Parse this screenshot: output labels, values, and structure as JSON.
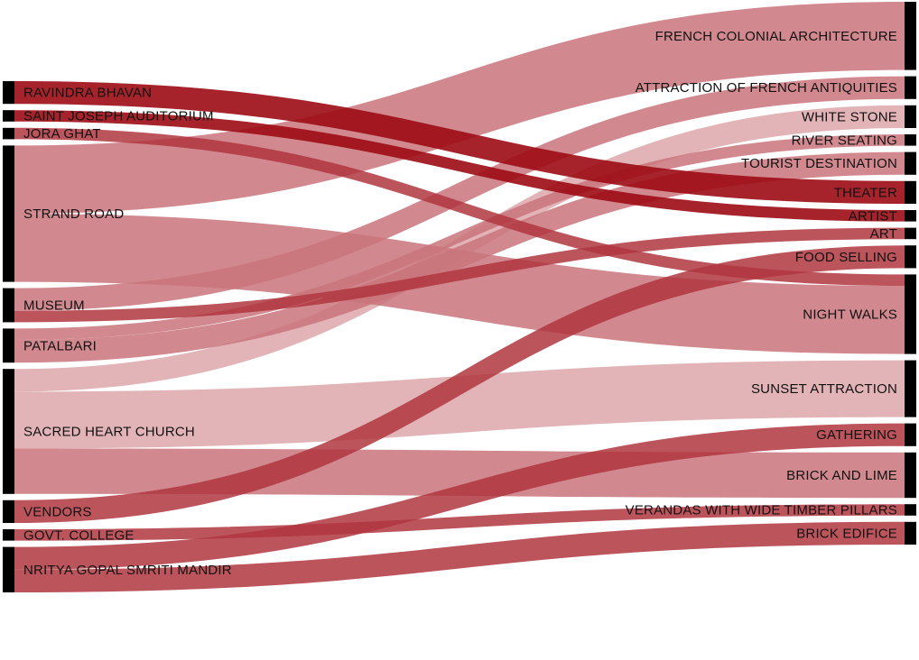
{
  "chart_data": {
    "type": "sankey",
    "colors": {
      "node_bar": "#000000",
      "link_light": "#dda7aa",
      "link_medium": "#c9747b",
      "link_strong": "#b0363f",
      "link_dark": "#9c0b14"
    },
    "sources": [
      {
        "id": "ravindra",
        "label": "RAVINDRA BHAVAN"
      },
      {
        "id": "sjauditorium",
        "label": "SAINT JOSEPH AUDITORIUM"
      },
      {
        "id": "joraghat",
        "label": "JORA GHAT"
      },
      {
        "id": "strandroad",
        "label": "STRAND ROAD"
      },
      {
        "id": "museum",
        "label": "MUSEUM"
      },
      {
        "id": "patalbari",
        "label": "PATALBARI"
      },
      {
        "id": "sacredheart",
        "label": "SACRED HEART CHURCH"
      },
      {
        "id": "vendors",
        "label": "VENDORS"
      },
      {
        "id": "govtcollege",
        "label": "GOVT. COLLEGE"
      },
      {
        "id": "nrityagopal",
        "label": "NRITYA GOPAL SMRITI MANDIR"
      }
    ],
    "targets": [
      {
        "id": "frenchcolonial",
        "label": "FRENCH COLONIAL ARCHITECTURE"
      },
      {
        "id": "frenchantiquities",
        "label": "ATTRACTION OF FRENCH ANTIQUITIES"
      },
      {
        "id": "whitestone",
        "label": "WHITE STONE"
      },
      {
        "id": "riverseating",
        "label": "RIVER SEATING"
      },
      {
        "id": "tourist",
        "label": "TOURIST DESTINATION"
      },
      {
        "id": "theater",
        "label": "THEATER"
      },
      {
        "id": "artist",
        "label": "ARTIST"
      },
      {
        "id": "art",
        "label": "ART"
      },
      {
        "id": "foodselling",
        "label": "FOOD SELLING"
      },
      {
        "id": "nightwalks",
        "label": "NIGHT WALKS"
      },
      {
        "id": "sunset",
        "label": "SUNSET ATTRACTION"
      },
      {
        "id": "gathering",
        "label": "GATHERING"
      },
      {
        "id": "brickandlime",
        "label": "BRICK AND LIME"
      },
      {
        "id": "verandas",
        "label": "VERANDAS WITH WIDE TIMBER PILLARS"
      },
      {
        "id": "brickedifice",
        "label": "BRICK EDIFICE"
      }
    ],
    "links": [
      {
        "source": "ravindra",
        "target": "theater",
        "value": 2,
        "tone": "dark"
      },
      {
        "source": "sjauditorium",
        "target": "artist",
        "value": 1,
        "tone": "dark"
      },
      {
        "source": "joraghat",
        "target": "nightwalks",
        "value": 1,
        "tone": "strong"
      },
      {
        "source": "strandroad",
        "target": "frenchcolonial",
        "value": 6,
        "tone": "medium"
      },
      {
        "source": "strandroad",
        "target": "nightwalks",
        "value": 6,
        "tone": "medium"
      },
      {
        "source": "museum",
        "target": "frenchantiquities",
        "value": 2,
        "tone": "medium"
      },
      {
        "source": "museum",
        "target": "art",
        "value": 1,
        "tone": "strong"
      },
      {
        "source": "patalbari",
        "target": "riverseating",
        "value": 1,
        "tone": "medium"
      },
      {
        "source": "patalbari",
        "target": "tourist",
        "value": 2,
        "tone": "medium"
      },
      {
        "source": "sacredheart",
        "target": "whitestone",
        "value": 2,
        "tone": "light"
      },
      {
        "source": "sacredheart",
        "target": "sunset",
        "value": 5,
        "tone": "light"
      },
      {
        "source": "sacredheart",
        "target": "brickandlime",
        "value": 4,
        "tone": "medium"
      },
      {
        "source": "vendors",
        "target": "foodselling",
        "value": 2,
        "tone": "strong"
      },
      {
        "source": "govtcollege",
        "target": "verandas",
        "value": 1,
        "tone": "strong"
      },
      {
        "source": "nrityagopal",
        "target": "gathering",
        "value": 2,
        "tone": "strong"
      },
      {
        "source": "nrityagopal",
        "target": "brickedifice",
        "value": 2,
        "tone": "strong"
      }
    ]
  }
}
